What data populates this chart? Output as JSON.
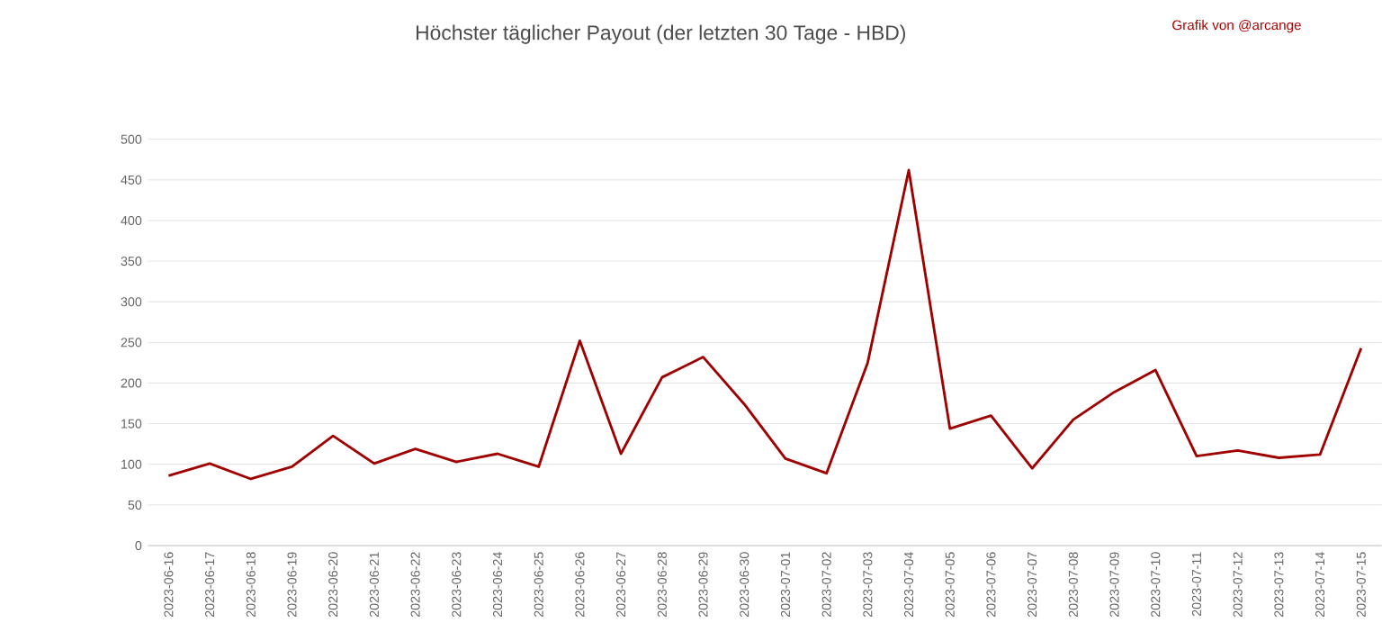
{
  "chart_data": {
    "type": "line",
    "title": "Höchster täglicher Payout (der letzten 30 Tage - HBD)",
    "annotations": [
      "Grafik von @arcange"
    ],
    "categories": [
      "2023-06-16",
      "2023-06-17",
      "2023-06-18",
      "2023-06-19",
      "2023-06-20",
      "2023-06-21",
      "2023-06-22",
      "2023-06-23",
      "2023-06-24",
      "2023-06-25",
      "2023-06-26",
      "2023-06-27",
      "2023-06-28",
      "2023-06-29",
      "2023-06-30",
      "2023-07-01",
      "2023-07-02",
      "2023-07-03",
      "2023-07-04",
      "2023-07-05",
      "2023-07-06",
      "2023-07-07",
      "2023-07-08",
      "2023-07-09",
      "2023-07-10",
      "2023-07-11",
      "2023-07-12",
      "2023-07-13",
      "2023-07-14",
      "2023-07-15"
    ],
    "series": [
      {
        "color": "#a00000",
        "values": [
          86,
          101,
          82,
          97,
          135,
          101,
          119,
          103,
          113,
          97,
          252,
          113,
          207,
          232,
          174,
          107,
          89,
          225,
          462,
          144,
          160,
          95,
          155,
          189,
          216,
          110,
          117,
          108,
          112,
          243
        ]
      }
    ],
    "ylim": [
      0,
      500
    ],
    "yticks": [
      0,
      50,
      100,
      150,
      200,
      250,
      300,
      350,
      400,
      450,
      500
    ],
    "grid": "y",
    "marker": "none",
    "line_style": "solid"
  }
}
